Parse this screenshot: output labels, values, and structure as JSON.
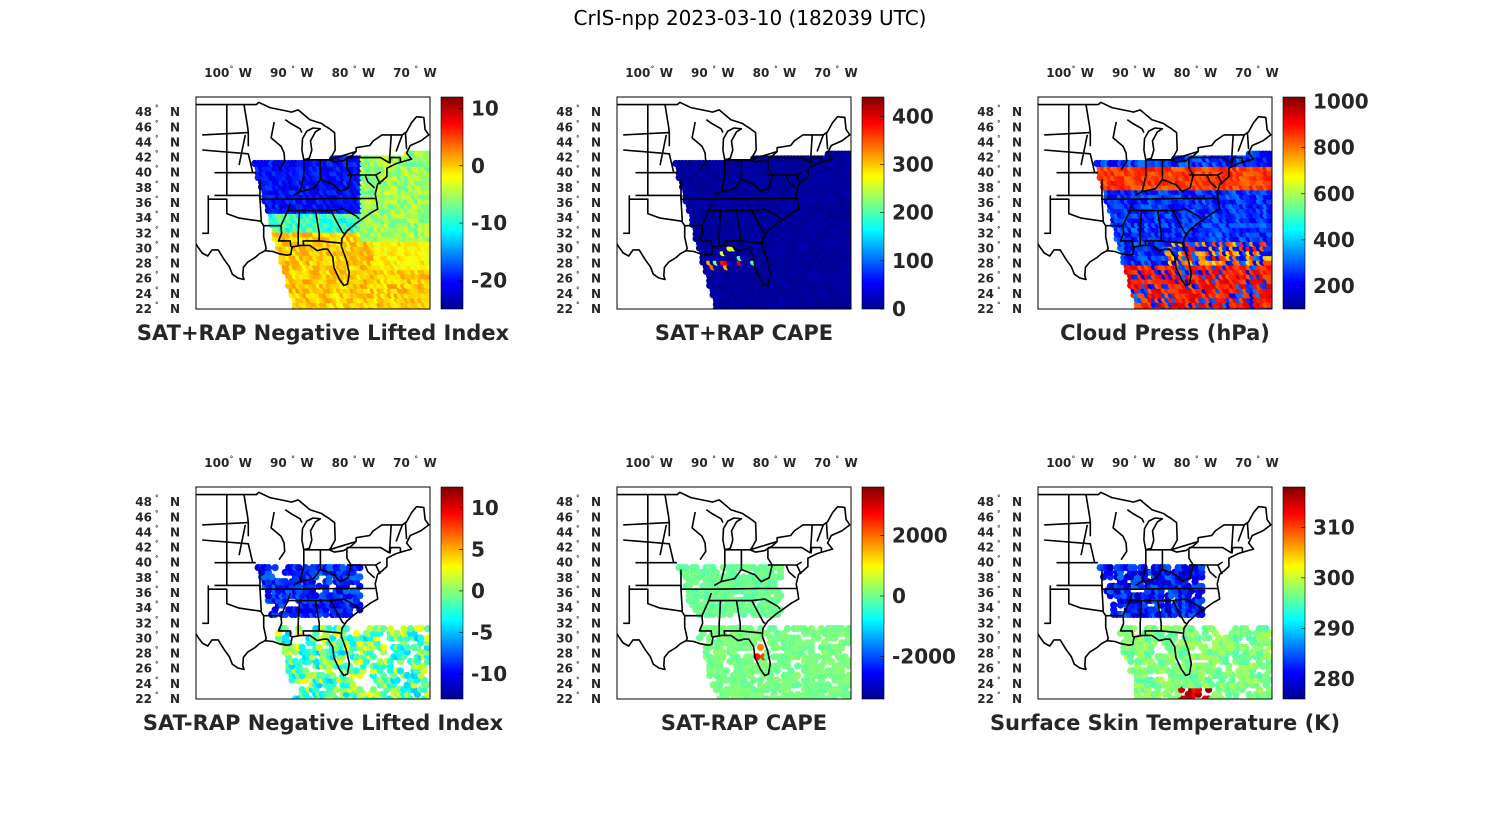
{
  "figure": {
    "title": "CrIS-npp 2023-03-10 (182039 UTC)"
  },
  "map_axes": {
    "lon_ticks": [
      {
        "value": -100,
        "label": "100",
        "hemi": "W"
      },
      {
        "value": -90,
        "label": "90",
        "hemi": "W"
      },
      {
        "value": -80,
        "label": "80",
        "hemi": "W"
      },
      {
        "value": -70,
        "label": "70",
        "hemi": "W"
      }
    ],
    "lat_ticks": [
      {
        "value": 48,
        "label": "48",
        "hemi": "N"
      },
      {
        "value": 46,
        "label": "46",
        "hemi": "N"
      },
      {
        "value": 44,
        "label": "44",
        "hemi": "N"
      },
      {
        "value": 42,
        "label": "42",
        "hemi": "N"
      },
      {
        "value": 40,
        "label": "40",
        "hemi": "N"
      },
      {
        "value": 38,
        "label": "38",
        "hemi": "N"
      },
      {
        "value": 36,
        "label": "36",
        "hemi": "N"
      },
      {
        "value": 34,
        "label": "34",
        "hemi": "N"
      },
      {
        "value": 32,
        "label": "32",
        "hemi": "N"
      },
      {
        "value": 30,
        "label": "30",
        "hemi": "N"
      },
      {
        "value": 28,
        "label": "28",
        "hemi": "N"
      },
      {
        "value": 26,
        "label": "26",
        "hemi": "N"
      },
      {
        "value": 24,
        "label": "24",
        "hemi": "N"
      },
      {
        "value": 22,
        "label": "22",
        "hemi": "N"
      }
    ],
    "lon_range": [
      -105,
      -67
    ],
    "lat_range": [
      22,
      50
    ],
    "colormap": "jet"
  },
  "panels": [
    {
      "id": "sat-rap-neg-li",
      "title": "SAT+RAP Negative Lifted Index",
      "colorbar": {
        "min": -25,
        "max": 12,
        "ticks": [
          {
            "v": 10,
            "label": "10"
          },
          {
            "v": 0,
            "label": "0"
          },
          {
            "v": -10,
            "label": "-10"
          },
          {
            "v": -20,
            "label": "-20"
          }
        ]
      },
      "field": "li_sum"
    },
    {
      "id": "sat-rap-cape",
      "title": "SAT+RAP CAPE",
      "colorbar": {
        "min": 0,
        "max": 440,
        "ticks": [
          {
            "v": 400,
            "label": "400"
          },
          {
            "v": 300,
            "label": "300"
          },
          {
            "v": 200,
            "label": "200"
          },
          {
            "v": 100,
            "label": "100"
          },
          {
            "v": 0,
            "label": "0"
          }
        ]
      },
      "field": "cape_sum"
    },
    {
      "id": "cloud-press",
      "title": "Cloud Press (hPa)",
      "colorbar": {
        "min": 100,
        "max": 1020,
        "ticks": [
          {
            "v": 1000,
            "label": "1000"
          },
          {
            "v": 800,
            "label": "800"
          },
          {
            "v": 600,
            "label": "600"
          },
          {
            "v": 400,
            "label": "400"
          },
          {
            "v": 200,
            "label": "200"
          }
        ]
      },
      "field": "cloud_press"
    },
    {
      "id": "sat-minus-rap-neg-li",
      "title": "SAT-RAP Negative Lifted Index",
      "colorbar": {
        "min": -13,
        "max": 12.5,
        "ticks": [
          {
            "v": 10,
            "label": "10"
          },
          {
            "v": 5,
            "label": "5"
          },
          {
            "v": 0,
            "label": "0"
          },
          {
            "v": -5,
            "label": "-5"
          },
          {
            "v": -10,
            "label": "-10"
          }
        ]
      },
      "field": "li_diff"
    },
    {
      "id": "sat-minus-rap-cape",
      "title": "SAT-RAP CAPE",
      "colorbar": {
        "min": -3400,
        "max": 3600,
        "ticks": [
          {
            "v": 2000,
            "label": "2000"
          },
          {
            "v": 0,
            "label": "0"
          },
          {
            "v": -2000,
            "label": "-2000"
          }
        ]
      },
      "field": "cape_diff"
    },
    {
      "id": "surface-skin-temp",
      "title": "Surface Skin Temperature (K)",
      "colorbar": {
        "min": 276,
        "max": 318,
        "ticks": [
          {
            "v": 310,
            "label": "310"
          },
          {
            "v": 300,
            "label": "300"
          },
          {
            "v": 290,
            "label": "290"
          },
          {
            "v": 280,
            "label": "280"
          }
        ]
      },
      "field": "skin_temp"
    }
  ]
}
